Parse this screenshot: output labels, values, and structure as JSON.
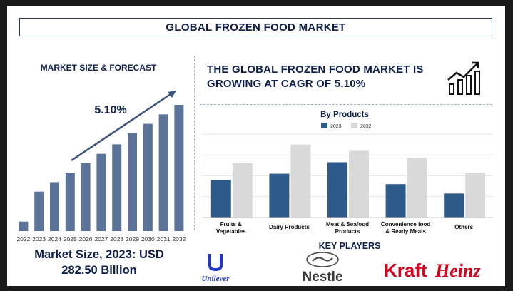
{
  "page": {
    "title": "GLOBAL FROZEN FOOD MARKET",
    "section_left_title": "MARKET SIZE & FORECAST",
    "headline": "THE GLOBAL FROZEN FOOD MARKET IS GROWING AT CAGR OF 5.10%",
    "market_size_line1": "Market Size, 2023: USD",
    "market_size_line2": "282.50 Billion",
    "key_players_title": "KEY PLAYERS",
    "cagr_label": "5.10%"
  },
  "key_players": [
    {
      "name": "Unilever",
      "logo_text": "Unilever"
    },
    {
      "name": "Nestle",
      "logo_text": "Nestle"
    },
    {
      "name": "KraftHeinz",
      "logo_text_a": "Kraft",
      "logo_text_b": "Heinz"
    }
  ],
  "colors": {
    "navy": "#0d1f4a",
    "bar_forecast": "#5b7399",
    "bar_2023": "#2e5a8a",
    "bar_2032": "#d9d9d9",
    "kraft_red": "#d6001c"
  },
  "chart_data": [
    {
      "type": "bar",
      "title": "",
      "categories": [
        "2022",
        "2023",
        "2024",
        "2025",
        "2026",
        "2027",
        "2028",
        "2029",
        "2030",
        "2031",
        "2032"
      ],
      "values": [
        6,
        25,
        31,
        37,
        43,
        49,
        55,
        62,
        68,
        74,
        80
      ],
      "annotation": "5.10%",
      "ylim": [
        0,
        85
      ],
      "grid": false
    },
    {
      "type": "bar",
      "title": "By Products",
      "categories": [
        "Fruits & Vegetables",
        "Dairy Products",
        "Meat & Seafood Products",
        "Convenience food & Ready Meals",
        "Others"
      ],
      "series": [
        {
          "name": "2023",
          "values": [
            36,
            42,
            53,
            32,
            23
          ]
        },
        {
          "name": "2032",
          "values": [
            52,
            70,
            64,
            57,
            43
          ]
        }
      ],
      "ylim": [
        0,
        80
      ],
      "legend": "top-center",
      "grid": true
    }
  ]
}
